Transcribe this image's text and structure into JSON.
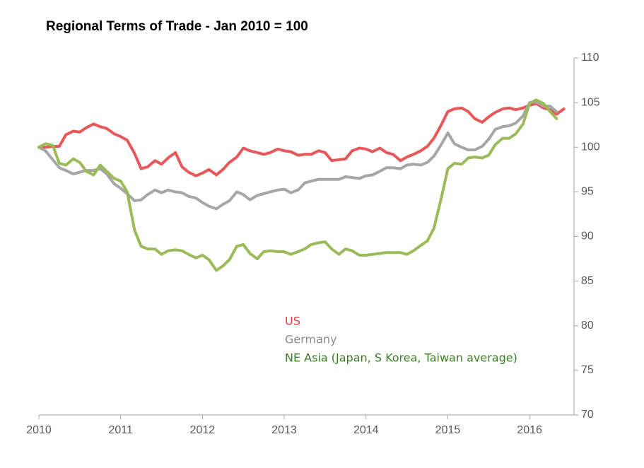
{
  "chart_data": {
    "type": "line",
    "title": "Regional  Terms of Trade - Jan 2010 = 100",
    "x": [
      2010,
      2010.08,
      2010.17,
      2010.25,
      2010.33,
      2010.42,
      2010.5,
      2010.58,
      2010.67,
      2010.75,
      2010.83,
      2010.92,
      2011,
      2011.08,
      2011.17,
      2011.25,
      2011.33,
      2011.42,
      2011.5,
      2011.58,
      2011.67,
      2011.75,
      2011.83,
      2011.92,
      2012,
      2012.08,
      2012.17,
      2012.25,
      2012.33,
      2012.42,
      2012.5,
      2012.58,
      2012.67,
      2012.75,
      2012.83,
      2012.92,
      2013,
      2013.08,
      2013.17,
      2013.25,
      2013.33,
      2013.42,
      2013.5,
      2013.58,
      2013.67,
      2013.75,
      2013.83,
      2013.92,
      2014,
      2014.08,
      2014.17,
      2014.25,
      2014.33,
      2014.42,
      2014.5,
      2014.58,
      2014.67,
      2014.75,
      2014.83,
      2014.92,
      2015,
      2015.08,
      2015.17,
      2015.25,
      2015.33,
      2015.42,
      2015.5,
      2015.58,
      2015.67,
      2015.75,
      2015.83,
      2015.92,
      2016,
      2016.08,
      2016.17,
      2016.25,
      2016.33,
      2016.42
    ],
    "series": [
      {
        "name": "US",
        "color": "#e8575a",
        "legend_color": "#e0393e",
        "values": [
          100,
          100,
          100.1,
          100.1,
          101.4,
          101.8,
          101.7,
          102.2,
          102.6,
          102.3,
          102.1,
          101.5,
          101.2,
          100.8,
          99.3,
          97.6,
          97.8,
          98.5,
          98.1,
          98.8,
          99.4,
          97.8,
          97.2,
          96.8,
          97.1,
          97.5,
          96.9,
          97.5,
          98.3,
          98.9,
          99.9,
          99.6,
          99.4,
          99.2,
          99.4,
          99.8,
          99.6,
          99.5,
          99.1,
          99.2,
          99.2,
          99.6,
          99.4,
          98.5,
          98.6,
          98.7,
          99.6,
          99.9,
          99.8,
          99.5,
          99.9,
          99.4,
          99.2,
          98.5,
          98.9,
          99.2,
          99.6,
          100.1,
          101.0,
          102.5,
          104.0,
          104.3,
          104.4,
          104.0,
          103.2,
          102.8,
          103.4,
          103.9,
          104.3,
          104.4,
          104.2,
          104.4,
          104.7,
          104.9,
          104.4,
          104.2,
          103.7,
          104.3
        ]
      },
      {
        "name": "Germany",
        "color": "#a6a6a6",
        "legend_color": "#8c8c8c",
        "values": [
          100,
          99.6,
          98.6,
          97.7,
          97.4,
          97.0,
          97.2,
          97.4,
          97.4,
          97.6,
          97.0,
          95.9,
          95.4,
          94.8,
          94.0,
          94.1,
          94.7,
          95.2,
          94.9,
          95.2,
          95.0,
          94.9,
          94.5,
          94.3,
          93.8,
          93.4,
          93.1,
          93.6,
          94.0,
          95.0,
          94.7,
          94.1,
          94.6,
          94.8,
          95.0,
          95.2,
          95.3,
          94.9,
          95.2,
          96.0,
          96.2,
          96.4,
          96.4,
          96.4,
          96.4,
          96.7,
          96.6,
          96.5,
          96.8,
          96.9,
          97.3,
          97.7,
          97.7,
          97.6,
          98.0,
          98.1,
          98.0,
          98.3,
          99.0,
          100.3,
          101.6,
          100.4,
          100.0,
          99.7,
          99.7,
          100.1,
          100.9,
          102.0,
          102.3,
          102.4,
          102.7,
          103.5,
          105.0,
          105.1,
          104.6,
          104.6,
          104.0,
          null
        ]
      },
      {
        "name": "NE Asia (Japan, S Korea, Taiwan average)",
        "color": "#9bbb59",
        "legend_color": "#3a7d22",
        "values": [
          100,
          100.4,
          100.2,
          98.2,
          98.0,
          98.7,
          98.3,
          97.3,
          96.9,
          98.0,
          97.3,
          96.5,
          96.2,
          95.0,
          90.7,
          88.9,
          88.6,
          88.6,
          88.0,
          88.4,
          88.5,
          88.4,
          88.0,
          87.6,
          87.9,
          87.4,
          86.2,
          86.7,
          87.4,
          88.9,
          89.1,
          88.1,
          87.5,
          88.3,
          88.4,
          88.3,
          88.3,
          88.0,
          88.3,
          88.6,
          89.1,
          89.3,
          89.4,
          88.6,
          88.0,
          88.6,
          88.4,
          87.9,
          87.9,
          88.0,
          88.1,
          88.2,
          88.2,
          88.2,
          88.0,
          88.4,
          89.0,
          89.5,
          90.9,
          94.3,
          97.6,
          98.2,
          98.1,
          98.8,
          98.9,
          98.8,
          99.1,
          100.3,
          101.0,
          101.0,
          101.5,
          102.6,
          104.9,
          105.3,
          104.9,
          104.0,
          103.2,
          null
        ]
      }
    ],
    "xlim": [
      2010,
      2016.5
    ],
    "xticks": [
      2010,
      2011,
      2012,
      2013,
      2014,
      2015,
      2016
    ],
    "ylim": [
      70,
      110
    ],
    "yticks": [
      70,
      75,
      80,
      85,
      90,
      95,
      100,
      105,
      110
    ],
    "grid": false
  }
}
